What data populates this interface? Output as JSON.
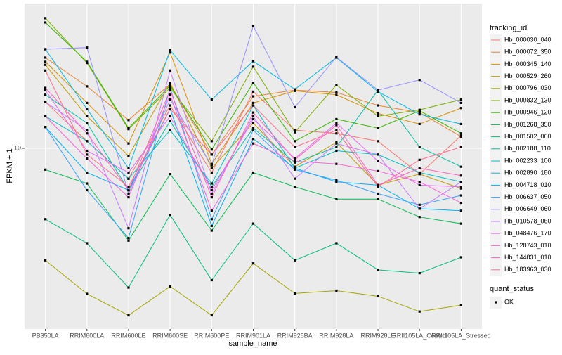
{
  "chart_data": {
    "type": "line",
    "x_label": "sample_name",
    "y_label": "FPKM + 1",
    "legend_title": "tracking_id",
    "legend_position": "right",
    "shape_legend_title": "quant_status",
    "shape_legend_labels": [
      "OK"
    ],
    "log_scale_y": true,
    "grid": true,
    "ylim": [
      2.28,
      32.7
    ],
    "yticks": [
      10
    ],
    "categories": [
      "PB350LA",
      "RRIM600LA",
      "RRIM600LE",
      "RRIM600SE",
      "RRIM600PE",
      "RRIM901LA",
      "RRIM928BA",
      "RRIM928LA",
      "RRIM928LE",
      "RRII105LA_Control",
      "RRII105LA_Stressed"
    ],
    "series": [
      {
        "name": "Hb_000030_040",
        "color": "#F8766D",
        "values": [
          14.6,
          10.6,
          7.8,
          14.2,
          8.2,
          15.9,
          11.6,
          11.3,
          10.6,
          8.1,
          11.1
        ]
      },
      {
        "name": "Hb_000072_350",
        "color": "#EA8331",
        "values": [
          21.0,
          16.6,
          12.6,
          16.9,
          9.5,
          15.3,
          16.1,
          15.8,
          14.2,
          13.4,
          11.0
        ]
      },
      {
        "name": "Hb_000345_140",
        "color": "#D89000",
        "values": [
          20.3,
          14.5,
          10.4,
          21.9,
          8.8,
          14.5,
          16.0,
          15.5,
          13.3,
          12.2,
          13.9
        ]
      },
      {
        "name": "Hb_000529_260",
        "color": "#C09B00",
        "values": [
          19.8,
          13.0,
          9.4,
          17.1,
          8.5,
          12.3,
          8.6,
          10.5,
          7.4,
          8.1,
          7.2
        ]
      },
      {
        "name": "Hb_000796_030",
        "color": "#A3A500",
        "values": [
          4.0,
          3.04,
          2.55,
          3.23,
          2.55,
          3.9,
          3.05,
          3.12,
          2.98,
          2.63,
          2.77
        ]
      },
      {
        "name": "Hb_000832_130",
        "color": "#7CAE00",
        "values": [
          29.0,
          20.1,
          11.7,
          16.4,
          10.6,
          19.5,
          11.4,
          16.8,
          13.0,
          13.7,
          14.9
        ]
      },
      {
        "name": "Hb_000946_120",
        "color": "#39B600",
        "values": [
          28.0,
          20.3,
          11.8,
          16.7,
          9.9,
          17.1,
          10.6,
          12.7,
          11.8,
          13.6,
          11.3
        ]
      },
      {
        "name": "Hb_001268_350",
        "color": "#00BB4E",
        "values": [
          8.4,
          7.5,
          4.7,
          8.1,
          5.1,
          8.2,
          7.3,
          6.6,
          6.6,
          5.7,
          5.4
        ]
      },
      {
        "name": "Hb_001502_060",
        "color": "#00BF7D",
        "values": [
          5.6,
          4.6,
          3.2,
          5.8,
          3.4,
          5.4,
          4.0,
          4.6,
          3.7,
          3.6,
          4.1
        ]
      },
      {
        "name": "Hb_002188_110",
        "color": "#00C1A3",
        "values": [
          15.5,
          12.3,
          7.1,
          12.5,
          7.3,
          11.8,
          8.9,
          10.1,
          16.1,
          10.1,
          8.6
        ]
      },
      {
        "name": "Hb_002233_100",
        "color": "#00BFC4",
        "values": [
          13.0,
          10.6,
          7.8,
          11.6,
          7.5,
          14.2,
          8.5,
          9.8,
          9.5,
          8.2,
          7.6
        ]
      },
      {
        "name": "Hb_002890_180",
        "color": "#00BAE0",
        "values": [
          22.5,
          13.8,
          8.5,
          22.3,
          14.9,
          20.4,
          16.2,
          21.0,
          15.9,
          13.2,
          12.2
        ]
      },
      {
        "name": "Hb_004718_010",
        "color": "#00B0F6",
        "values": [
          11.9,
          8.2,
          7.1,
          13.8,
          5.3,
          10.8,
          8.5,
          7.6,
          7.4,
          6.1,
          6.0
        ]
      },
      {
        "name": "Hb_006637_050",
        "color": "#35A2FF",
        "values": [
          11.9,
          7.1,
          4.8,
          16.4,
          5.6,
          11.6,
          8.4,
          7.7,
          6.9,
          6.3,
          6.8
        ]
      },
      {
        "name": "Hb_006649_060",
        "color": "#9590FF",
        "values": [
          22.5,
          22.8,
          6.9,
          14.9,
          8.7,
          27.2,
          14.0,
          21.1,
          16.1,
          17.5,
          14.5
        ]
      },
      {
        "name": "Hb_010578_060",
        "color": "#C77CFF",
        "values": [
          14.6,
          11.6,
          5.2,
          18.9,
          6.9,
          13.0,
          7.8,
          10.4,
          9.5,
          6.1,
          7.6
        ]
      },
      {
        "name": "Hb_048476_170",
        "color": "#E76BF3",
        "values": [
          16.1,
          9.8,
          8.2,
          13.0,
          7.1,
          12.7,
          9.2,
          12.3,
          9.0,
          7.4,
          7.3
        ]
      },
      {
        "name": "Hb_128743_010",
        "color": "#FA62DB",
        "values": [
          13.0,
          9.2,
          6.7,
          15.5,
          6.0,
          10.4,
          9.0,
          8.8,
          8.3,
          7.6,
          6.4
        ]
      },
      {
        "name": "Hb_144831_010",
        "color": "#FF62BC",
        "values": [
          16.4,
          11.3,
          7.1,
          16.1,
          6.7,
          13.4,
          9.1,
          12.1,
          7.4,
          8.5,
          8.0
        ]
      },
      {
        "name": "Hb_183963_030",
        "color": "#FF6C91",
        "values": [
          18.9,
          9.5,
          7.3,
          13.8,
          9.5,
          14.2,
          10.1,
          11.6,
          7.3,
          9.1,
          10.1
        ]
      }
    ]
  }
}
